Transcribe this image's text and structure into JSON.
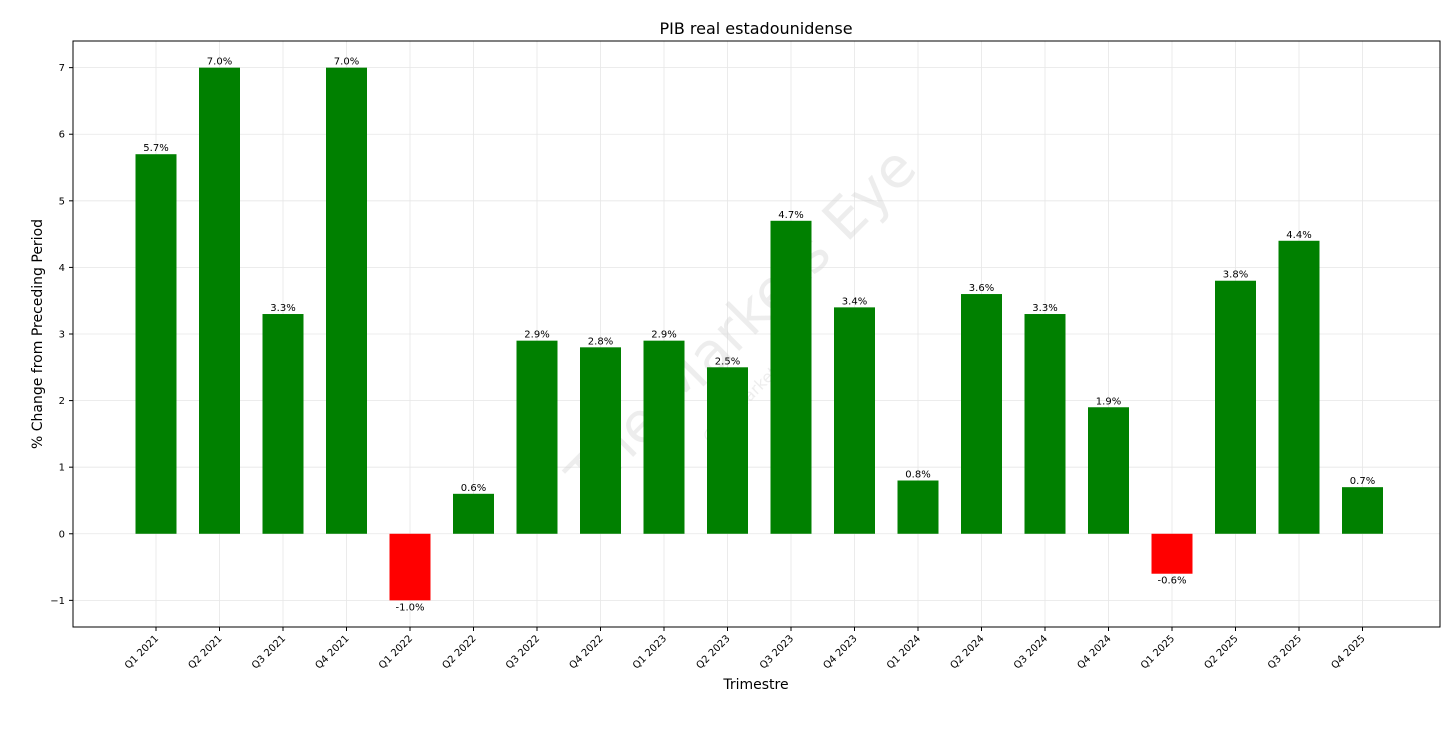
{
  "chart_data": {
    "type": "bar",
    "title": "PIB real estadounidense",
    "xlabel": "Trimestre",
    "ylabel": "% Change from Preceding Period",
    "categories": [
      "Q1 2021",
      "Q2 2021",
      "Q3 2021",
      "Q4 2021",
      "Q1 2022",
      "Q2 2022",
      "Q3 2022",
      "Q4 2022",
      "Q1 2023",
      "Q2 2023",
      "Q3 2023",
      "Q4 2023",
      "Q1 2024",
      "Q2 2024",
      "Q3 2024",
      "Q4 2024",
      "Q1 2025",
      "Q2 2025",
      "Q3 2025",
      "Q4 2025"
    ],
    "values": [
      5.7,
      7.0,
      3.3,
      7.0,
      -1.0,
      0.6,
      2.9,
      2.8,
      2.9,
      2.5,
      4.7,
      3.4,
      0.8,
      3.6,
      3.3,
      1.9,
      -0.6,
      3.8,
      4.4,
      0.7
    ],
    "data_labels": [
      "5.7%",
      "7.0%",
      "3.3%",
      "7.0%",
      "-1.0%",
      "0.6%",
      "2.9%",
      "2.8%",
      "2.9%",
      "2.5%",
      "4.7%",
      "3.4%",
      "0.8%",
      "3.6%",
      "3.3%",
      "1.9%",
      "-0.6%",
      "3.8%",
      "4.4%",
      "0.7%"
    ],
    "yticks": [
      -1,
      0,
      1,
      2,
      3,
      4,
      5,
      6,
      7
    ],
    "ylim": [
      -1.4,
      7.4
    ],
    "grid": true,
    "colors": {
      "positive": "#008000",
      "negative": "#ff0000"
    }
  },
  "watermark": {
    "main": "The Markets Eye",
    "sub": "@themarketseye"
  }
}
